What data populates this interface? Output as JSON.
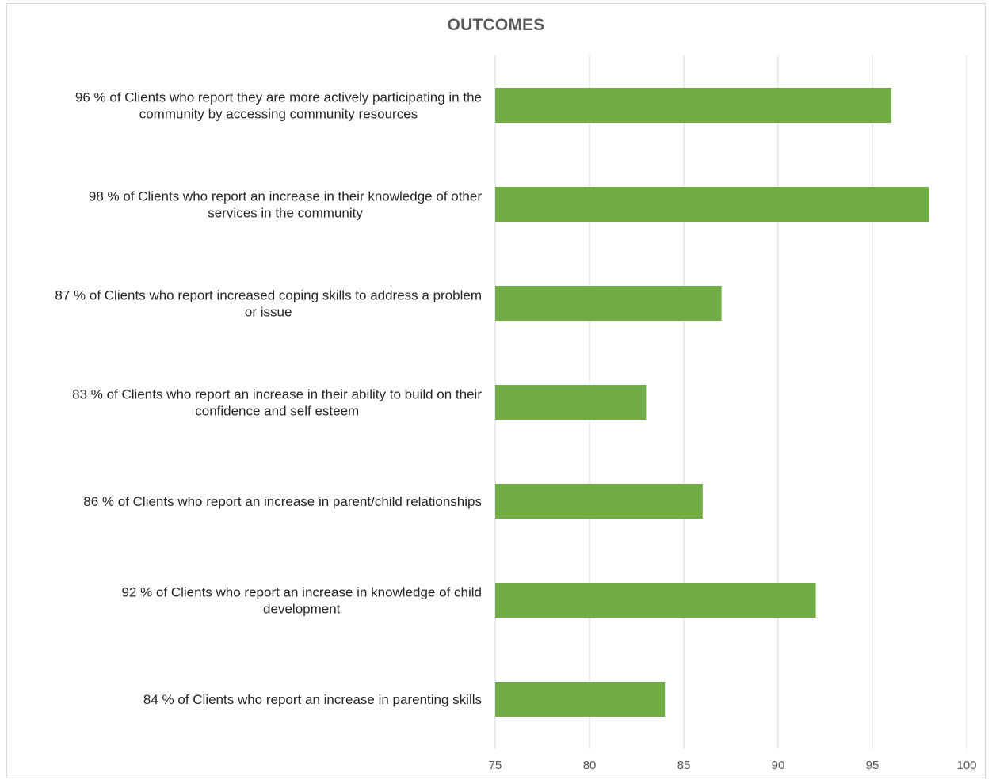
{
  "chart_data": {
    "type": "bar",
    "orientation": "horizontal",
    "title": "OUTCOMES",
    "categories": [
      [
        "96 %  of Clients who report they are more actively participating in the",
        "community by accessing community resources"
      ],
      [
        "98 %  of Clients who report an increase in their knowledge of other",
        "services in the community"
      ],
      [
        "87 %  of Clients who report increased coping skills to address a problem",
        "or issue"
      ],
      [
        "83 %  of Clients who report an increase in their ability to build on their",
        "confidence and self esteem"
      ],
      [
        "86 %  of Clients who report an increase in parent/child relationships"
      ],
      [
        "92 %  of Clients who report an increase in knowledge of child",
        "development"
      ],
      [
        "84 %  of Clients who report an increase in parenting skills"
      ]
    ],
    "values": [
      96,
      98,
      87,
      83,
      86,
      92,
      84
    ],
    "xlim": [
      75,
      100
    ],
    "xticks": [
      75,
      80,
      85,
      90,
      95,
      100
    ],
    "xlabel": "",
    "ylabel": "",
    "grid": "vertical",
    "legend": "none",
    "bar_color": "#70ad47",
    "grid_color": "#d9d9d9",
    "title_color": "#595959"
  }
}
